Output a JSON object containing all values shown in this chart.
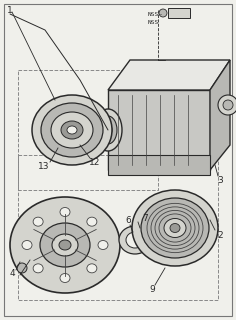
{
  "bg_color": "#f0f0eb",
  "border_color": "#777777",
  "line_color": "#2a2a2a",
  "dark_gray": "#444444",
  "mid_gray": "#888888",
  "light_gray": "#cccccc",
  "fill_light": "#d4d4ce",
  "fill_mid": "#b8b8b4",
  "fill_dark": "#9a9a96",
  "white_ish": "#e8e8e4",
  "compressor_fill": "#c8c8c4"
}
